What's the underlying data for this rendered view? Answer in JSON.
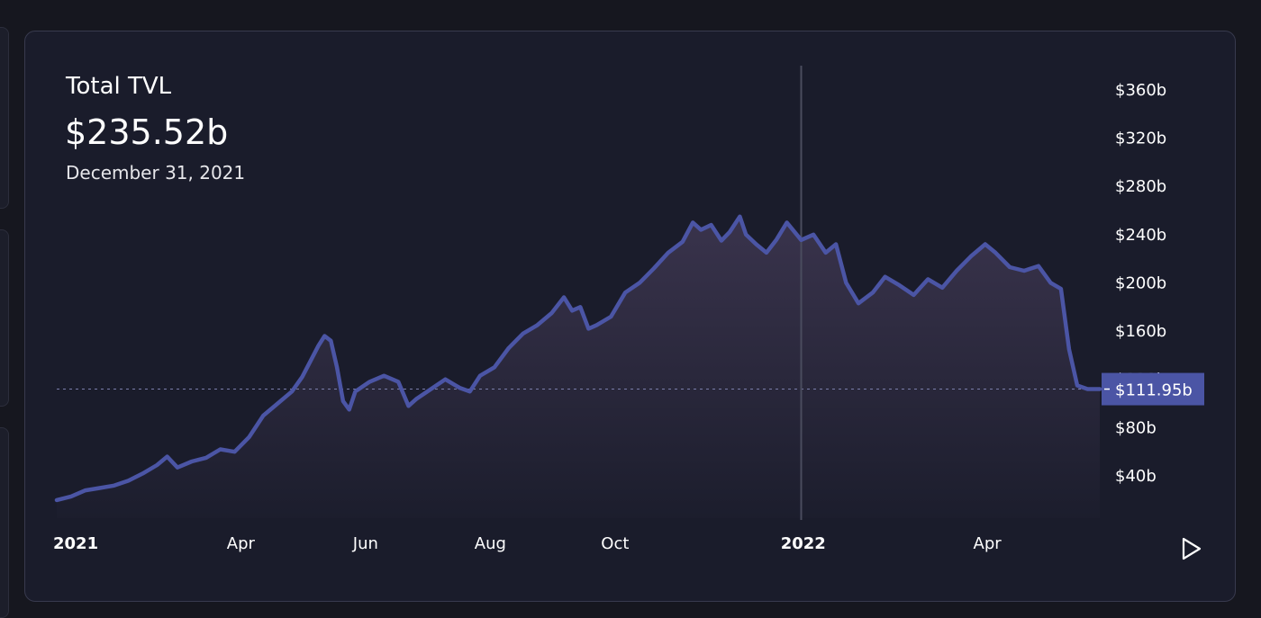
{
  "header": {
    "title": "Total TVL",
    "value": "$235.52b",
    "date": "December 31, 2021"
  },
  "controls": {
    "play_icon": "play-icon"
  },
  "colors": {
    "background": "#16171f",
    "card": "#1a1c2b",
    "line": "#4b55a5",
    "area_top": "#3d3650",
    "crosshair": "#4a4c5e",
    "price_badge": "#4b55a5"
  },
  "chart_data": {
    "type": "area",
    "title": "Total TVL",
    "y_unit": "USD billions",
    "ylim": [
      5,
      380
    ],
    "y_ticks": [
      {
        "value": 40,
        "label": "$40b"
      },
      {
        "value": 80,
        "label": "$80b"
      },
      {
        "value": 120,
        "label": "$120b"
      },
      {
        "value": 160,
        "label": "$160b"
      },
      {
        "value": 200,
        "label": "$200b"
      },
      {
        "value": 240,
        "label": "$240b"
      },
      {
        "value": 280,
        "label": "$280b"
      },
      {
        "value": 320,
        "label": "$320b"
      },
      {
        "value": 360,
        "label": "$360b"
      }
    ],
    "x_ticks": [
      {
        "date": "2021-01-01",
        "label": "2021",
        "bold": true
      },
      {
        "date": "2021-04-01",
        "label": "Apr",
        "bold": false
      },
      {
        "date": "2021-06-01",
        "label": "Jun",
        "bold": false
      },
      {
        "date": "2021-08-01",
        "label": "Aug",
        "bold": false
      },
      {
        "date": "2021-10-01",
        "label": "Oct",
        "bold": false
      },
      {
        "date": "2022-01-01",
        "label": "2022",
        "bold": true
      },
      {
        "date": "2022-04-01",
        "label": "Apr",
        "bold": false
      }
    ],
    "xlim": [
      "2021-01-01",
      "2022-05-26"
    ],
    "crosshair": {
      "date": "2021-12-31",
      "value": 235.52
    },
    "last_value": {
      "value": 111.95,
      "label": "$111.95b"
    },
    "series": [
      {
        "points": [
          [
            "2021-01-01",
            20
          ],
          [
            "2021-01-08",
            23
          ],
          [
            "2021-01-15",
            28
          ],
          [
            "2021-01-22",
            30
          ],
          [
            "2021-01-29",
            32
          ],
          [
            "2021-02-05",
            36
          ],
          [
            "2021-02-12",
            42
          ],
          [
            "2021-02-19",
            49
          ],
          [
            "2021-02-24",
            56
          ],
          [
            "2021-03-01",
            47
          ],
          [
            "2021-03-08",
            52
          ],
          [
            "2021-03-15",
            55
          ],
          [
            "2021-03-22",
            62
          ],
          [
            "2021-03-29",
            60
          ],
          [
            "2021-04-05",
            72
          ],
          [
            "2021-04-12",
            90
          ],
          [
            "2021-04-19",
            100
          ],
          [
            "2021-04-26",
            110
          ],
          [
            "2021-05-01",
            122
          ],
          [
            "2021-05-05",
            135
          ],
          [
            "2021-05-09",
            148
          ],
          [
            "2021-05-12",
            156
          ],
          [
            "2021-05-15",
            152
          ],
          [
            "2021-05-18",
            130
          ],
          [
            "2021-05-21",
            102
          ],
          [
            "2021-05-24",
            95
          ],
          [
            "2021-05-27",
            110
          ],
          [
            "2021-06-03",
            118
          ],
          [
            "2021-06-10",
            123
          ],
          [
            "2021-06-17",
            118
          ],
          [
            "2021-06-22",
            98
          ],
          [
            "2021-06-26",
            104
          ],
          [
            "2021-07-03",
            112
          ],
          [
            "2021-07-10",
            120
          ],
          [
            "2021-07-17",
            113
          ],
          [
            "2021-07-22",
            110
          ],
          [
            "2021-07-27",
            123
          ],
          [
            "2021-08-03",
            130
          ],
          [
            "2021-08-10",
            146
          ],
          [
            "2021-08-17",
            158
          ],
          [
            "2021-08-24",
            165
          ],
          [
            "2021-08-31",
            175
          ],
          [
            "2021-09-06",
            188
          ],
          [
            "2021-09-10",
            177
          ],
          [
            "2021-09-14",
            180
          ],
          [
            "2021-09-18",
            162
          ],
          [
            "2021-09-22",
            165
          ],
          [
            "2021-09-29",
            172
          ],
          [
            "2021-10-06",
            192
          ],
          [
            "2021-10-13",
            200
          ],
          [
            "2021-10-20",
            212
          ],
          [
            "2021-10-27",
            225
          ],
          [
            "2021-11-03",
            234
          ],
          [
            "2021-11-08",
            250
          ],
          [
            "2021-11-12",
            244
          ],
          [
            "2021-11-17",
            248
          ],
          [
            "2021-11-22",
            235
          ],
          [
            "2021-11-26",
            242
          ],
          [
            "2021-12-01",
            255
          ],
          [
            "2021-12-04",
            240
          ],
          [
            "2021-12-09",
            232
          ],
          [
            "2021-12-14",
            225
          ],
          [
            "2021-12-19",
            236
          ],
          [
            "2021-12-24",
            250
          ],
          [
            "2021-12-31",
            235.52
          ],
          [
            "2022-01-06",
            240
          ],
          [
            "2022-01-12",
            225
          ],
          [
            "2022-01-17",
            232
          ],
          [
            "2022-01-22",
            200
          ],
          [
            "2022-01-28",
            183
          ],
          [
            "2022-02-04",
            192
          ],
          [
            "2022-02-10",
            205
          ],
          [
            "2022-02-17",
            198
          ],
          [
            "2022-02-24",
            190
          ],
          [
            "2022-03-03",
            203
          ],
          [
            "2022-03-10",
            196
          ],
          [
            "2022-03-17",
            210
          ],
          [
            "2022-03-24",
            222
          ],
          [
            "2022-03-31",
            232
          ],
          [
            "2022-04-05",
            225
          ],
          [
            "2022-04-12",
            213
          ],
          [
            "2022-04-19",
            210
          ],
          [
            "2022-04-26",
            214
          ],
          [
            "2022-05-02",
            200
          ],
          [
            "2022-05-07",
            195
          ],
          [
            "2022-05-11",
            145
          ],
          [
            "2022-05-15",
            115
          ],
          [
            "2022-05-20",
            112
          ],
          [
            "2022-05-26",
            111.95
          ]
        ]
      }
    ]
  }
}
